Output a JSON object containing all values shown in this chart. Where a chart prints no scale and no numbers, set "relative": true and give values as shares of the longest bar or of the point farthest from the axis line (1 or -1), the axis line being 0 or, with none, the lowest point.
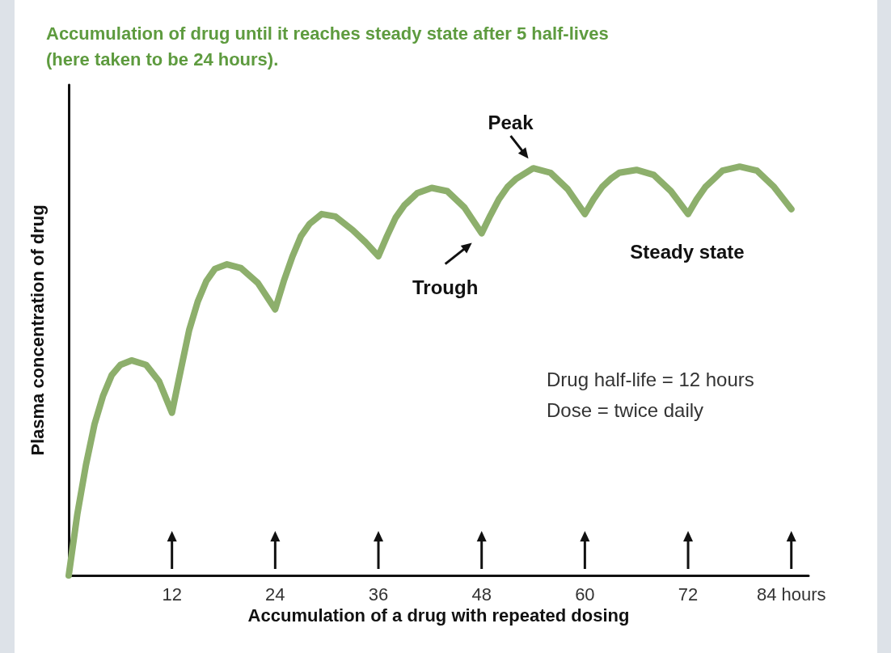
{
  "chart_data": {
    "type": "line",
    "title": "Accumulation of drug until it reaches steady state after 5 half-lives (here taken to be 24 hours).",
    "xlabel": "Accumulation of a drug with repeated dosing",
    "ylabel": "Plasma concentration of drug",
    "relative": true,
    "xlim": [
      0,
      86
    ],
    "xticks": [
      12,
      24,
      36,
      48,
      60,
      72,
      {
        "value": 84,
        "label": "84 hours"
      }
    ],
    "x": [
      0,
      1,
      2,
      3,
      4,
      5,
      6,
      7.3,
      9,
      10.5,
      12,
      13,
      14,
      15,
      16,
      17,
      18.4,
      20,
      22,
      24,
      25,
      26,
      27,
      28,
      29.4,
      31,
      33,
      34.5,
      36,
      37,
      38,
      39,
      40.5,
      42.2,
      44,
      46,
      48,
      49,
      50,
      51,
      52,
      54,
      56,
      58,
      60,
      61,
      62,
      63,
      64,
      66,
      68,
      70,
      72,
      73,
      74,
      75,
      76,
      78,
      80,
      82,
      84
    ],
    "series": [
      {
        "color": "#8daf6c",
        "values": [
          0,
          0.15,
          0.27,
          0.37,
          0.44,
          0.49,
          0.515,
          0.526,
          0.515,
          0.475,
          0.398,
          0.5,
          0.6,
          0.67,
          0.72,
          0.75,
          0.761,
          0.752,
          0.715,
          0.651,
          0.72,
          0.78,
          0.83,
          0.86,
          0.884,
          0.878,
          0.845,
          0.815,
          0.781,
          0.83,
          0.875,
          0.905,
          0.935,
          0.948,
          0.94,
          0.9,
          0.837,
          0.88,
          0.92,
          0.95,
          0.97,
          0.996,
          0.985,
          0.945,
          0.884,
          0.92,
          0.95,
          0.97,
          0.985,
          0.992,
          0.98,
          0.94,
          0.884,
          0.92,
          0.95,
          0.97,
          0.99,
          1,
          0.99,
          0.95,
          0.896
        ]
      }
    ],
    "line_style": "solid",
    "grid": false,
    "annotations": [
      {
        "text": "Peak",
        "x": 54,
        "y": 0.996
      },
      {
        "text": "Trough",
        "x": 48,
        "y": 0.837
      },
      "Steady state",
      "Drug half-life = 12 hours",
      "Dose = twice daily"
    ]
  }
}
